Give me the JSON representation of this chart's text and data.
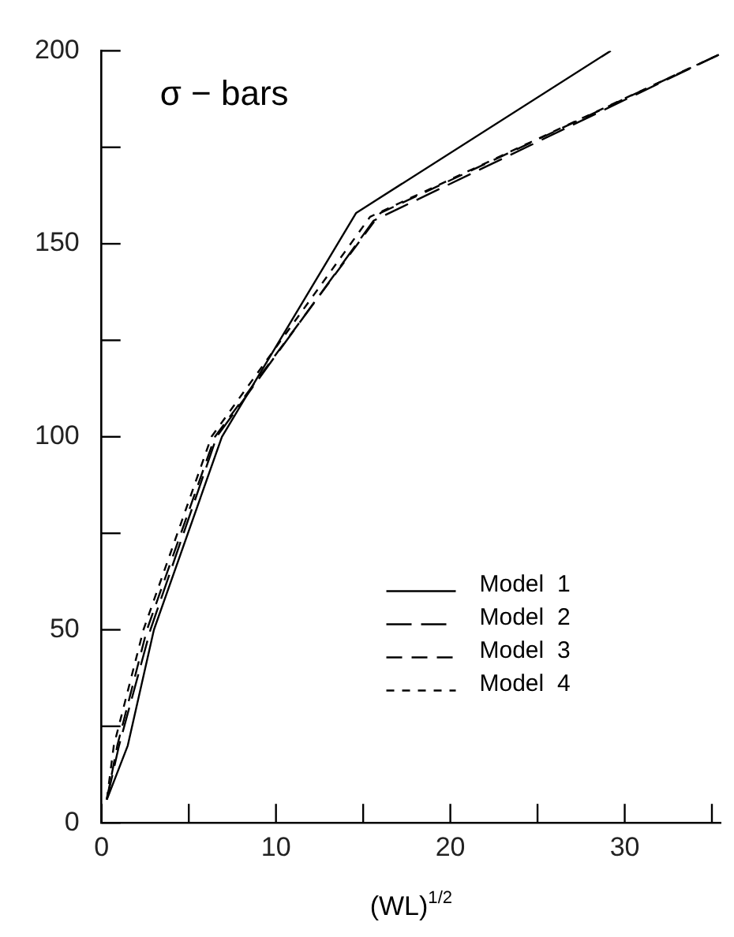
{
  "chart_data": {
    "type": "line",
    "annotations": [
      "σ − bars"
    ],
    "xlabel": "(WL)$^{1/2}$",
    "xlim": [
      0,
      35.5
    ],
    "xticks": [
      0,
      {
        "value": 5,
        "label": null
      },
      10,
      {
        "value": 15,
        "label": null
      },
      20,
      {
        "value": 25,
        "label": null
      },
      30,
      {
        "value": 35,
        "label": null
      }
    ],
    "ylim": [
      0,
      200
    ],
    "yticks": [
      0,
      {
        "value": 25,
        "label": null
      },
      50,
      {
        "value": 75,
        "label": null
      },
      100,
      {
        "value": 125,
        "label": null
      },
      150,
      {
        "value": 175,
        "label": null
      },
      200
    ],
    "legend": "right",
    "grid": false,
    "marker": "none",
    "series": [
      {
        "name": "Model  1",
        "color": "#000000",
        "line_style": "solid",
        "x": [
          0.3,
          1.5,
          3.0,
          6.9,
          14.6,
          29.2
        ],
        "values": [
          6,
          20,
          50,
          100,
          158,
          200
        ]
      },
      {
        "name": "Model  2",
        "color": "#000000",
        "line_style": "dashed",
        "x": [
          0.3,
          1.0,
          2.8,
          6.6,
          15.6,
          35.4
        ],
        "values": [
          6,
          20,
          50,
          100,
          156,
          199
        ]
      },
      {
        "name": "Model  3",
        "color": "#000000",
        "line_style": "dashed",
        "x": [
          0.3,
          0.9,
          2.6,
          6.5,
          16.0,
          35.4
        ],
        "values": [
          6,
          20,
          50,
          100,
          158,
          199
        ]
      },
      {
        "name": "Model  4",
        "color": "#000000",
        "line_style": "dotted",
        "x": [
          0.3,
          0.7,
          2.4,
          6.3,
          15.4,
          35.4
        ],
        "values": [
          6,
          20,
          50,
          100,
          157,
          199
        ]
      }
    ]
  }
}
